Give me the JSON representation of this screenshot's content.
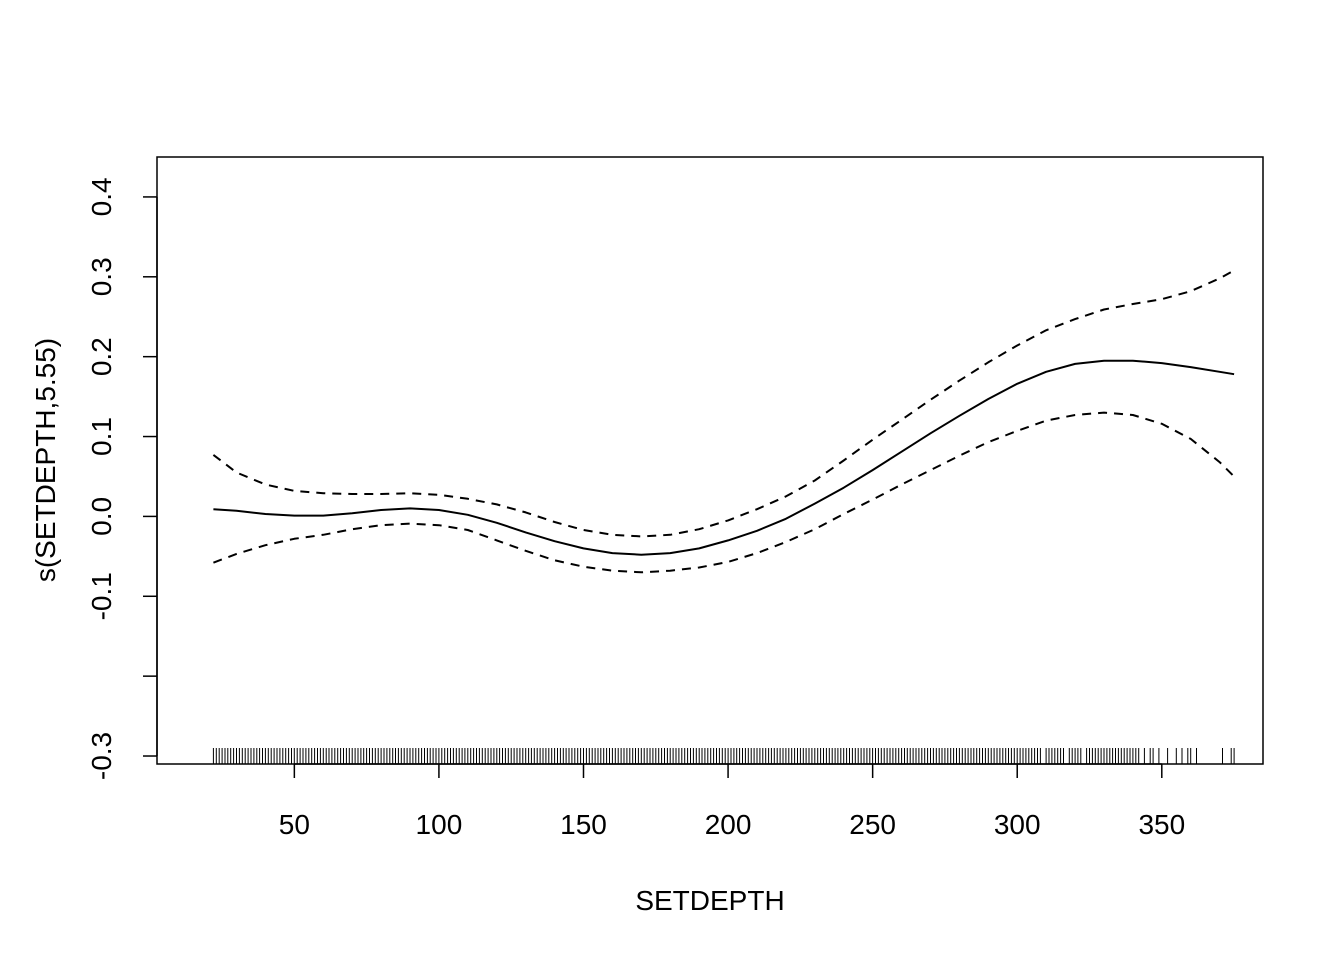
{
  "chart_data": {
    "type": "line",
    "title": "",
    "xlabel": "SETDEPTH",
    "ylabel": "s(SETDEPTH,5.55)",
    "xlim": [
      2.5,
      385
    ],
    "ylim": [
      -0.31,
      0.45
    ],
    "x_ticks": [
      50,
      100,
      150,
      200,
      250,
      300,
      350
    ],
    "x_tick_labels": [
      "50",
      "100",
      "150",
      "200",
      "250",
      "300",
      "350"
    ],
    "y_ticks": [
      -0.3,
      -0.2,
      -0.1,
      0.0,
      0.1,
      0.2,
      0.3,
      0.4
    ],
    "y_tick_labels": [
      "-0.3",
      "",
      "-0.1",
      "0.0",
      "0.1",
      "0.2",
      "0.3",
      "0.4"
    ],
    "grid": false,
    "series": [
      {
        "style": "solid",
        "x": [
          22,
          30,
          40,
          50,
          60,
          70,
          80,
          90,
          100,
          110,
          120,
          130,
          140,
          150,
          160,
          170,
          180,
          190,
          200,
          210,
          220,
          230,
          240,
          250,
          260,
          270,
          280,
          290,
          300,
          310,
          320,
          330,
          340,
          350,
          360,
          370,
          375
        ],
        "y": [
          0.009,
          0.007,
          0.003,
          0.001,
          0.001,
          0.004,
          0.008,
          0.01,
          0.008,
          0.002,
          -0.008,
          -0.02,
          -0.031,
          -0.04,
          -0.046,
          -0.048,
          -0.046,
          -0.04,
          -0.03,
          -0.018,
          -0.003,
          0.016,
          0.036,
          0.058,
          0.081,
          0.104,
          0.126,
          0.147,
          0.166,
          0.181,
          0.191,
          0.195,
          0.195,
          0.192,
          0.187,
          0.181,
          0.178
        ]
      },
      {
        "style": "dashed",
        "x": [
          22,
          30,
          40,
          50,
          60,
          70,
          80,
          90,
          100,
          110,
          120,
          130,
          140,
          150,
          160,
          170,
          180,
          190,
          200,
          210,
          220,
          230,
          240,
          250,
          260,
          270,
          280,
          290,
          300,
          310,
          320,
          330,
          340,
          350,
          360,
          370,
          375
        ],
        "y": [
          0.077,
          0.055,
          0.04,
          0.032,
          0.029,
          0.028,
          0.028,
          0.029,
          0.027,
          0.022,
          0.015,
          0.005,
          -0.007,
          -0.017,
          -0.023,
          -0.025,
          -0.023,
          -0.016,
          -0.005,
          0.009,
          0.025,
          0.045,
          0.07,
          0.096,
          0.121,
          0.146,
          0.17,
          0.193,
          0.214,
          0.233,
          0.247,
          0.259,
          0.266,
          0.272,
          0.282,
          0.298,
          0.308
        ]
      },
      {
        "style": "dashed",
        "x": [
          22,
          30,
          40,
          50,
          60,
          70,
          80,
          90,
          100,
          110,
          120,
          130,
          140,
          150,
          160,
          170,
          180,
          190,
          200,
          210,
          220,
          230,
          240,
          250,
          260,
          270,
          280,
          290,
          300,
          310,
          320,
          330,
          340,
          350,
          360,
          370,
          375
        ],
        "y": [
          -0.058,
          -0.047,
          -0.036,
          -0.028,
          -0.023,
          -0.016,
          -0.011,
          -0.009,
          -0.011,
          -0.017,
          -0.03,
          -0.043,
          -0.055,
          -0.063,
          -0.068,
          -0.07,
          -0.068,
          -0.064,
          -0.057,
          -0.046,
          -0.032,
          -0.016,
          0.003,
          0.021,
          0.04,
          0.058,
          0.076,
          0.093,
          0.107,
          0.12,
          0.127,
          0.13,
          0.127,
          0.116,
          0.097,
          0.068,
          0.05
        ]
      }
    ],
    "rug": [
      22,
      23,
      24,
      25,
      26,
      27,
      28,
      29,
      30,
      31,
      32,
      33,
      34,
      35,
      36,
      37,
      38,
      39,
      40,
      41,
      42,
      43,
      44,
      45,
      46,
      47,
      48,
      49,
      50,
      51,
      52,
      53,
      54,
      55,
      56,
      57,
      58,
      59,
      60,
      61,
      62,
      63,
      64,
      65,
      66,
      67,
      68,
      69,
      70,
      71,
      72,
      73,
      74,
      75,
      76,
      77,
      78,
      79,
      80,
      81,
      82,
      83,
      84,
      85,
      86,
      87,
      88,
      89,
      90,
      91,
      92,
      93,
      94,
      95,
      96,
      97,
      98,
      99,
      100,
      101,
      102,
      103,
      104,
      105,
      106,
      107,
      108,
      109,
      110,
      111,
      112,
      113,
      114,
      115,
      116,
      117,
      118,
      119,
      120,
      121,
      122,
      123,
      124,
      125,
      126,
      127,
      128,
      129,
      130,
      131,
      132,
      133,
      134,
      135,
      136,
      137,
      138,
      139,
      140,
      141,
      142,
      143,
      144,
      145,
      146,
      147,
      148,
      149,
      150,
      151,
      152,
      153,
      154,
      155,
      156,
      157,
      158,
      159,
      160,
      161,
      162,
      163,
      164,
      165,
      166,
      167,
      168,
      169,
      170,
      171,
      172,
      173,
      174,
      175,
      176,
      177,
      178,
      179,
      180,
      181,
      182,
      183,
      184,
      185,
      186,
      187,
      188,
      189,
      190,
      191,
      192,
      193,
      194,
      195,
      196,
      197,
      198,
      199,
      200,
      201,
      202,
      203,
      204,
      205,
      206,
      207,
      208,
      209,
      210,
      211,
      212,
      213,
      214,
      215,
      216,
      217,
      218,
      219,
      220,
      221,
      222,
      223,
      224,
      225,
      226,
      227,
      228,
      229,
      230,
      231,
      232,
      233,
      234,
      235,
      236,
      237,
      238,
      239,
      240,
      241,
      242,
      243,
      244,
      245,
      246,
      247,
      248,
      249,
      250,
      251,
      252,
      253,
      254,
      255,
      256,
      257,
      258,
      259,
      260,
      261,
      262,
      263,
      264,
      265,
      266,
      267,
      268,
      269,
      270,
      271,
      272,
      273,
      274,
      275,
      276,
      277,
      278,
      279,
      280,
      281,
      282,
      283,
      284,
      285,
      286,
      287,
      288,
      289,
      290,
      291,
      292,
      293,
      294,
      295,
      296,
      297,
      298,
      299,
      300,
      301,
      302,
      303,
      304,
      305,
      306,
      307,
      308,
      310,
      311,
      312,
      313,
      314,
      315,
      316,
      318,
      319,
      320,
      321,
      322,
      324,
      325,
      326,
      327,
      328,
      329,
      330,
      331,
      332,
      333,
      334,
      335,
      336,
      337,
      338,
      339,
      340,
      341,
      342,
      344,
      346,
      347,
      349,
      352,
      355,
      357,
      359,
      360,
      362,
      371,
      374,
      375
    ]
  }
}
